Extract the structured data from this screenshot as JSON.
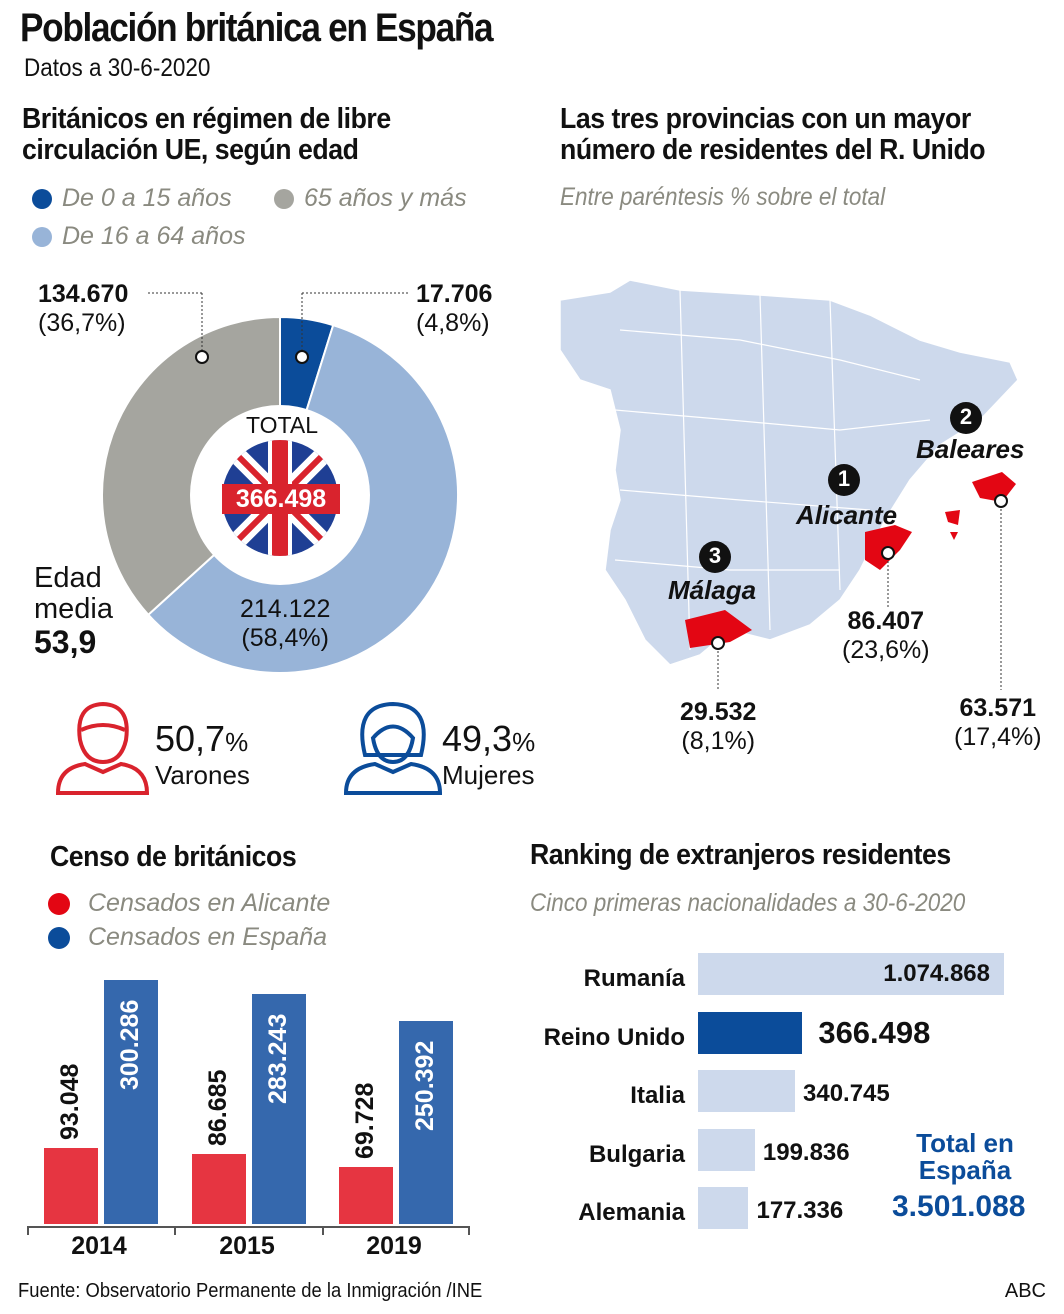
{
  "header": {
    "title": "Población británica en España",
    "subtitle": "Datos a 30-6-2020"
  },
  "age_section": {
    "title_line1": "Británicos en régimen de libre",
    "title_line2": "circulación UE, según edad",
    "center_label": "TOTAL",
    "total": "366.498",
    "labels": {
      "elderly_value": "134.670",
      "elderly_pct": "(36,7%)",
      "young_value": "17.706",
      "young_pct": "(4,8%)",
      "adult_value": "214.122",
      "adult_pct": "(58,4%)"
    },
    "average_age_label_1": "Edad",
    "average_age_label_2": "media",
    "average_age_value": "53,9",
    "men": {
      "value": "50,7",
      "unit": "%",
      "label": "Varones"
    },
    "women": {
      "value": "49,3",
      "unit": "%",
      "label": "Mujeres"
    }
  },
  "map_section": {
    "title_line1": "Las tres provincias con un mayor",
    "title_line2": "número de residentes del R. Unido",
    "subtitle": "Entre paréntesis % sobre el total",
    "provinces": [
      {
        "rank": "1",
        "name": "Alicante",
        "value": "86.407",
        "pct": "(23,6%)"
      },
      {
        "rank": "2",
        "name": "Baleares",
        "value": "63.571",
        "pct": "(17,4%)"
      },
      {
        "rank": "3",
        "name": "Málaga",
        "value": "29.532",
        "pct": "(8,1%)"
      }
    ],
    "colors": {
      "land": "#cdd9ec",
      "highlight": "#e30613"
    }
  },
  "census_section": {
    "title": "Censo de británicos"
  },
  "ranking_section": {
    "title": "Ranking de extranjeros residentes",
    "subtitle": "Cinco primeras nacionalidades a 30-6-2020",
    "total_label_1": "Total en",
    "total_label_2": "España",
    "total_value": "3.501.088"
  },
  "footer": {
    "source": "Fuente: Observatorio Permanente de la Inmigración /INE",
    "brand": "ABC"
  },
  "chart_data": [
    {
      "type": "pie",
      "title": "Británicos en régimen de libre circulación UE, según edad",
      "slices": [
        {
          "name": "De 0 a 15 años",
          "value": 17706,
          "pct": 4.8,
          "color": "#0b4c9a"
        },
        {
          "name": "De 16 a 64 años",
          "value": 214122,
          "pct": 58.4,
          "color": "#98b4d8"
        },
        {
          "name": "65 años y más",
          "value": 134670,
          "pct": 36.7,
          "color": "#a5a59f"
        }
      ],
      "donut": true,
      "legend": "top-left"
    },
    {
      "type": "bar",
      "title": "Censo de británicos",
      "categories": [
        "2014",
        "2015",
        "2019"
      ],
      "series": [
        {
          "name": "Censados en Alicante",
          "values": [
            93048,
            86685,
            69728
          ],
          "labels": [
            "93.048",
            "86.685",
            "69.728"
          ],
          "color": "#e63541"
        },
        {
          "name": "Censados en España",
          "values": [
            300286,
            283243,
            250392
          ],
          "labels": [
            "300.286",
            "283.243",
            "250.392"
          ],
          "color": "#3568ad"
        }
      ],
      "legend": "top-left"
    },
    {
      "type": "bar",
      "orientation": "horizontal",
      "title": "Ranking de extranjeros residentes",
      "categories": [
        "Rumanía",
        "Reino Unido",
        "Italia",
        "Bulgaria",
        "Alemania"
      ],
      "values": [
        1074868,
        366498,
        340745,
        199836,
        177336
      ],
      "labels": [
        "1.074.868",
        "366.498",
        "340.745",
        "199.836",
        "177.336"
      ],
      "colors": {
        "default": "#cdd9ec",
        "highlight": "#0b4c9a"
      },
      "highlight": "Reino Unido"
    }
  ]
}
